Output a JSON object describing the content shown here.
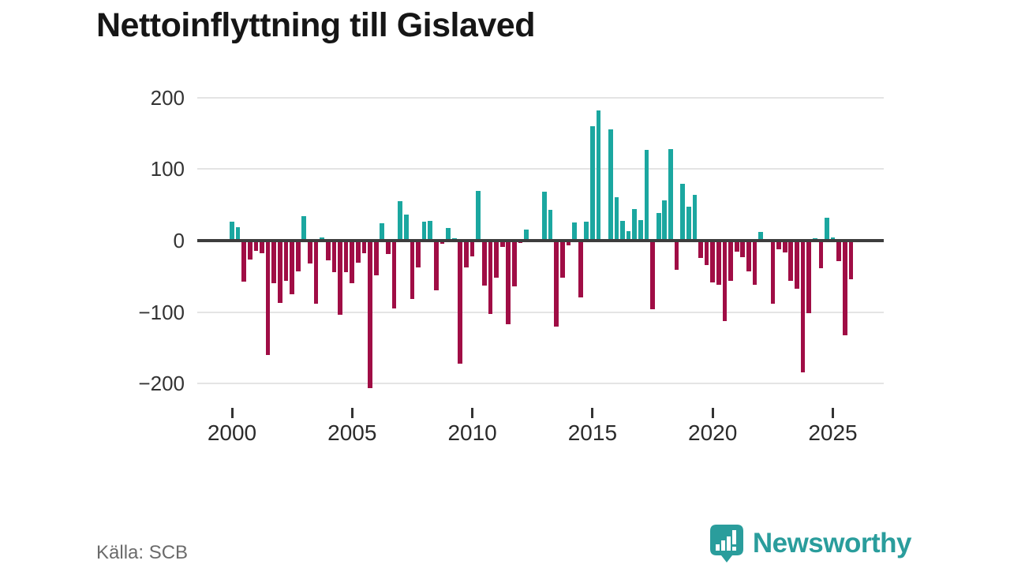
{
  "title": "Nettoinflyttning till Gislaved",
  "footer": {
    "source": "Källa: SCB"
  },
  "logo": {
    "text": "Newsworthy",
    "icon": "bar-chart-pin-badge"
  },
  "colors": {
    "positive_bar": "#1ba7a0",
    "negative_bar": "#a00d45",
    "zero_axis": "#3d3d3d",
    "gridline": "#e4e4e4",
    "logo_teal": "#2a9d9c",
    "title_text": "#161616",
    "axis_text": "#333333",
    "source_text": "#6b6b6b"
  },
  "chart_data": {
    "type": "bar",
    "title": "Nettoinflyttning till Gislaved",
    "frequency": "quarterly",
    "start": "2000Q1",
    "end": "2025Q4",
    "start_year": 2000,
    "x_tick_labels": [
      "2000",
      "2005",
      "2010",
      "2015",
      "2020",
      "2025"
    ],
    "y_ticks": [
      200,
      100,
      0,
      -100,
      -200
    ],
    "ylim": [
      -220,
      220
    ],
    "grid": true,
    "legend": "none",
    "positive_color": "#1ba7a0",
    "negative_color": "#a00d45",
    "values": [
      27,
      19,
      -57,
      -26,
      -14,
      -18,
      -160,
      -59,
      -87,
      -56,
      -75,
      -43,
      34,
      -32,
      -88,
      4,
      -27,
      -44,
      -104,
      -44,
      -60,
      -31,
      -18,
      -206,
      -49,
      24,
      -19,
      -95,
      55,
      36,
      -82,
      -38,
      27,
      28,
      -70,
      -4,
      18,
      3,
      -172,
      -38,
      -22,
      70,
      -63,
      -103,
      -52,
      -9,
      -117,
      -64,
      -3,
      16,
      0,
      0,
      69,
      43,
      -120,
      -52,
      -7,
      25,
      -79,
      27,
      160,
      182,
      0,
      156,
      61,
      28,
      13,
      44,
      29,
      127,
      -96,
      39,
      56,
      128,
      -41,
      79,
      48,
      64,
      -24,
      -34,
      -58,
      -62,
      -113,
      -56,
      -15,
      -23,
      -43,
      -62,
      12,
      0,
      -88,
      -12,
      -17,
      -56,
      -67,
      -184,
      -102,
      3,
      -39,
      32,
      4,
      -29,
      -132,
      -54
    ]
  }
}
